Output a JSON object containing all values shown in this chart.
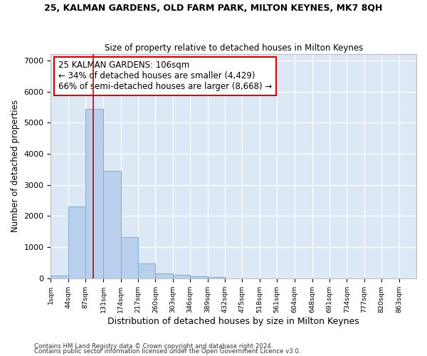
{
  "title": "25, KALMAN GARDENS, OLD FARM PARK, MILTON KEYNES, MK7 8QH",
  "subtitle": "Size of property relative to detached houses in Milton Keynes",
  "xlabel": "Distribution of detached houses by size in Milton Keynes",
  "ylabel": "Number of detached properties",
  "bar_color": "#b8d0eb",
  "bar_edge_color": "#7aafd4",
  "background_color": "#dce8f5",
  "grid_color": "#ffffff",
  "annotation_box_color": "#cc0000",
  "annotation_text": "25 KALMAN GARDENS: 106sqm\n← 34% of detached houses are smaller (4,429)\n66% of semi-detached houses are larger (8,668) →",
  "property_line_x": 106,
  "footer1": "Contains HM Land Registry data © Crown copyright and database right 2024.",
  "footer2": "Contains public sector information licensed under the Open Government Licence v3.0.",
  "bins": [
    1,
    44,
    87,
    131,
    174,
    217,
    260,
    303,
    346,
    389,
    432,
    475,
    518,
    561,
    604,
    648,
    691,
    734,
    777,
    820,
    863
  ],
  "counts": [
    80,
    2300,
    5450,
    3450,
    1330,
    480,
    160,
    100,
    70,
    50,
    0,
    0,
    0,
    0,
    0,
    0,
    0,
    0,
    0,
    0
  ],
  "ylim": [
    0,
    7200
  ],
  "yticks": [
    0,
    1000,
    2000,
    3000,
    4000,
    5000,
    6000,
    7000
  ]
}
